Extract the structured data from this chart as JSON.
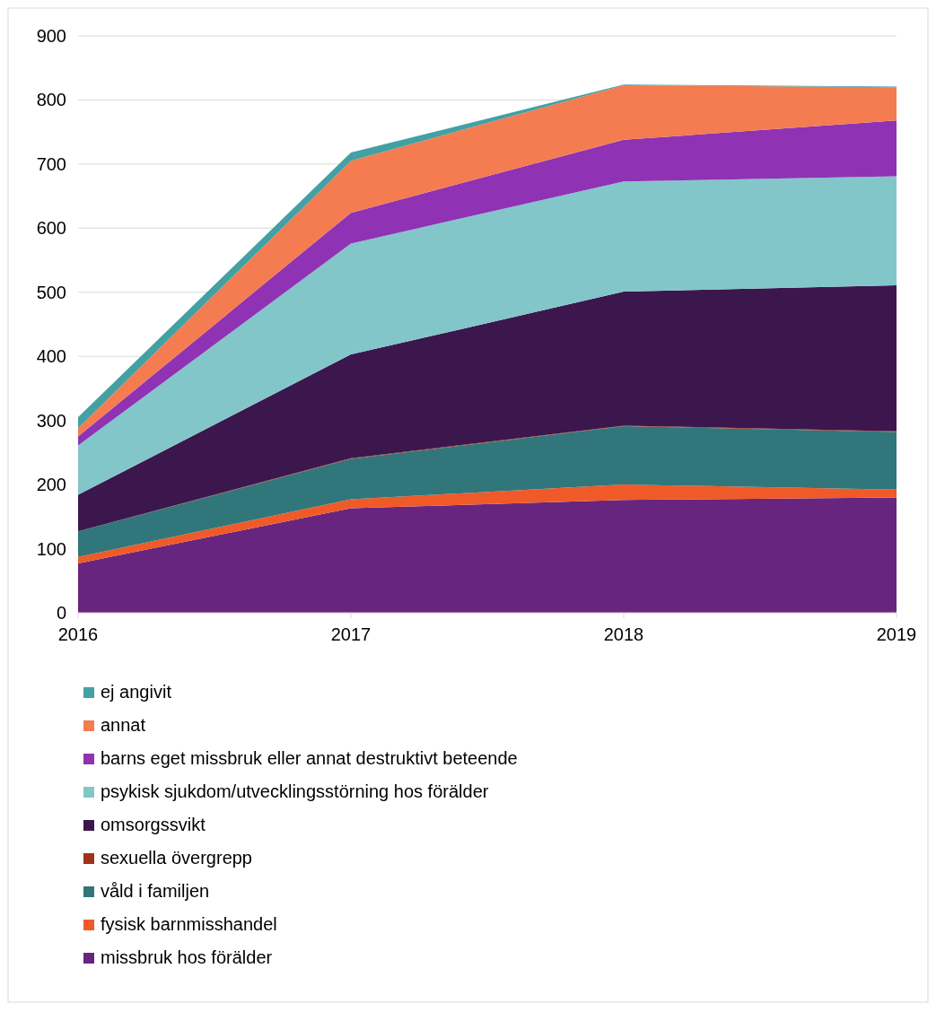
{
  "chart_data": {
    "type": "area",
    "stacked": true,
    "x": [
      2016,
      2017,
      2018,
      2019
    ],
    "xlim": [
      2016,
      2019
    ],
    "xticks": [
      2016,
      2017,
      2018,
      2019
    ],
    "ylim": [
      0,
      900
    ],
    "yticks": [
      0,
      100,
      200,
      300,
      400,
      500,
      600,
      700,
      800,
      900
    ],
    "grid": "y",
    "legend": "bottom",
    "series": [
      {
        "name": "missbruk hos förälder",
        "color": "#68257f",
        "values": [
          77,
          163,
          176,
          180
        ]
      },
      {
        "name": "fysisk barnmisshandel",
        "color": "#f05a28",
        "values": [
          10,
          14,
          24,
          12
        ]
      },
      {
        "name": "våld i familjen",
        "color": "#31767a",
        "values": [
          40,
          63,
          91,
          90
        ]
      },
      {
        "name": "sexuella övergrepp",
        "color": "#a0341a",
        "values": [
          0,
          1,
          1,
          1
        ]
      },
      {
        "name": "omsorgssvikt",
        "color": "#3c174e",
        "values": [
          57,
          162,
          209,
          228
        ]
      },
      {
        "name": "psykisk sjukdom/utvecklingsstörning hos förälder",
        "color": "#82c6ca",
        "values": [
          77,
          173,
          172,
          170
        ]
      },
      {
        "name": "barns eget missbruk eller annat destruktivt beteende",
        "color": "#9032b4",
        "values": [
          14,
          48,
          65,
          87
        ]
      },
      {
        "name": "annat",
        "color": "#f47c50",
        "values": [
          13,
          81,
          85,
          52
        ]
      },
      {
        "name": "ej angivit",
        "color": "#43a0a3",
        "values": [
          17,
          13,
          1,
          1
        ]
      }
    ]
  }
}
